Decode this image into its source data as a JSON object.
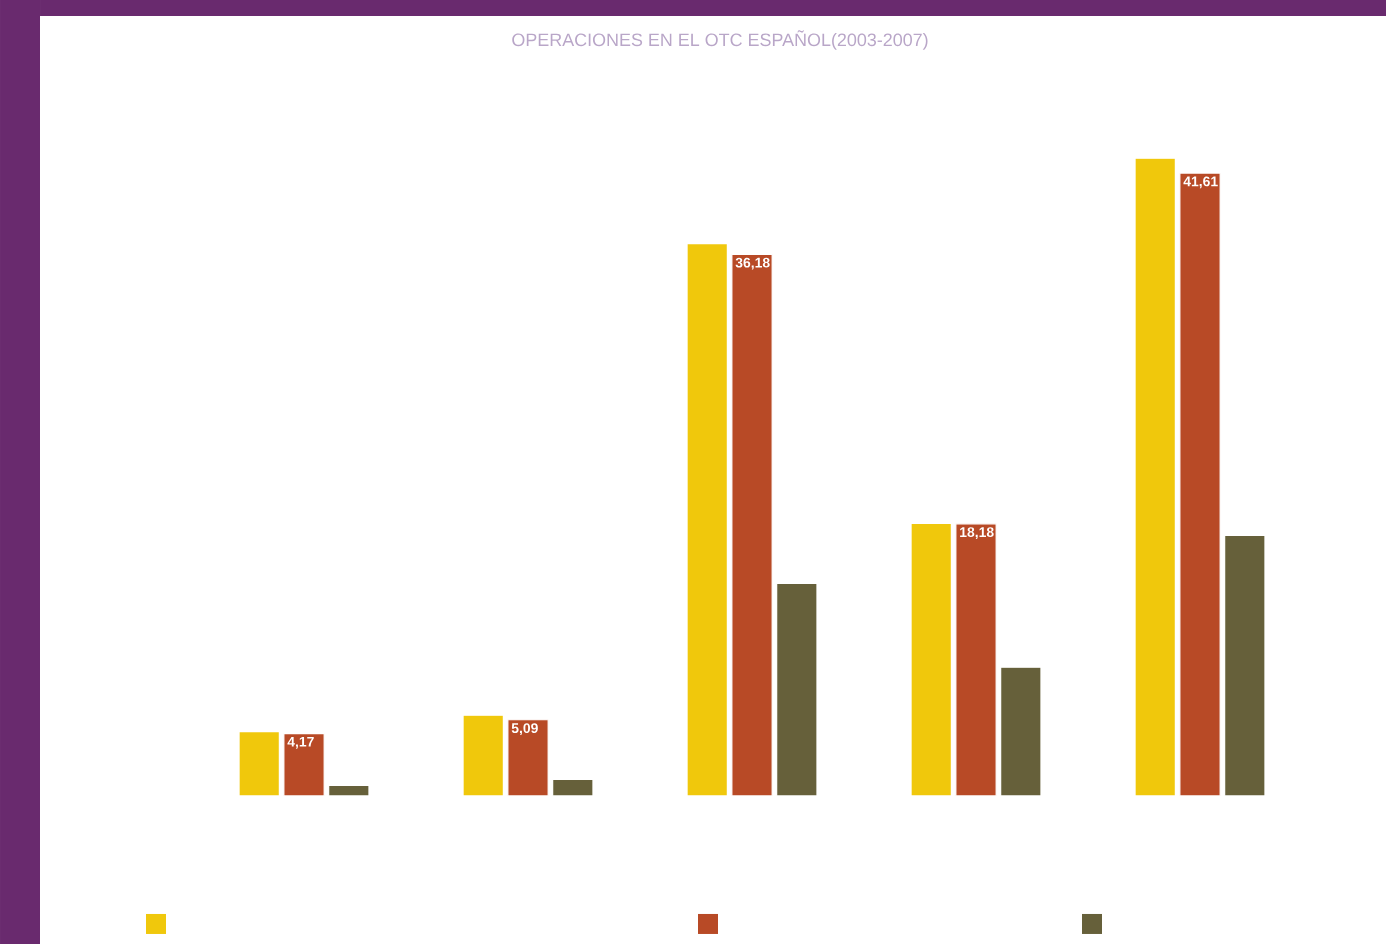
{
  "chart_data": {
    "type": "bar",
    "title": "OPERACIONES EN EL OTC ESPAÑOL(2003-2007)",
    "categories": [
      null,
      null,
      null,
      null,
      null
    ],
    "series": [
      {
        "color": "#f0c80c",
        "values": [
          4.3,
          5.4,
          36.9,
          18.2,
          42.6
        ]
      },
      {
        "color": "#b84a26",
        "values": [
          4.17,
          5.09,
          36.18,
          18.18,
          41.61
        ],
        "value_labels": [
          "4,17",
          "5,09",
          "36,18",
          "18,18",
          "41,61"
        ]
      },
      {
        "color": "#66603a",
        "values": [
          0.7,
          1.1,
          14.2,
          8.6,
          17.4
        ]
      }
    ]
  }
}
